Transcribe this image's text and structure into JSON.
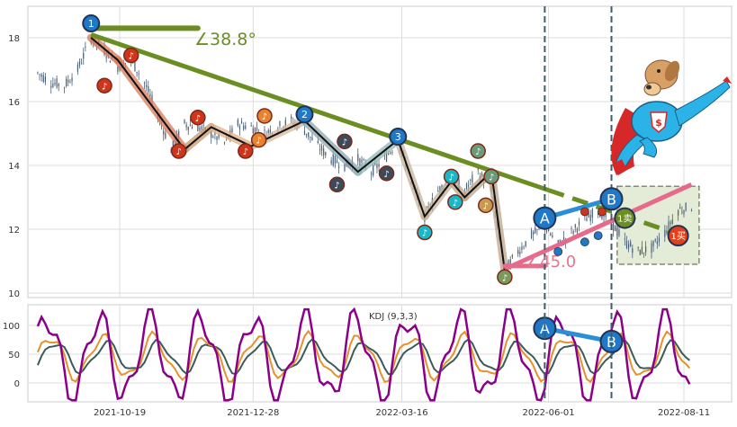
{
  "chart_data": [
    {
      "panel": "price",
      "type": "candlestick",
      "x_labels": [
        "2021-10-19",
        "2021-12-28",
        "2022-03-16",
        "2022-06-01",
        "2022-08-11"
      ],
      "y_ticks": [
        "10",
        "12",
        "14",
        "16",
        "18"
      ],
      "ylim": [
        9.8,
        18.9
      ],
      "grid": true,
      "price_series": [
        [
          "2021-09-06",
          16.9
        ],
        [
          "2021-09-13",
          16.6
        ],
        [
          "2021-09-20",
          16.5
        ],
        [
          "2021-09-27",
          17.0
        ],
        [
          "2021-10-04",
          18.0
        ],
        [
          "2021-10-11",
          17.6
        ],
        [
          "2021-10-18",
          17.1
        ],
        [
          "2021-10-25",
          17.3
        ],
        [
          "2021-11-01",
          16.6
        ],
        [
          "2021-11-08",
          15.6
        ],
        [
          "2021-11-15",
          14.5
        ],
        [
          "2021-11-22",
          15.3
        ],
        [
          "2021-11-29",
          15.2
        ],
        [
          "2021-12-06",
          15.0
        ],
        [
          "2021-12-13",
          14.7
        ],
        [
          "2021-12-20",
          15.3
        ],
        [
          "2021-12-27",
          15.2
        ],
        [
          "2022-01-03",
          15.0
        ],
        [
          "2022-01-10",
          15.2
        ],
        [
          "2022-01-17",
          15.4
        ],
        [
          "2022-01-24",
          15.1
        ],
        [
          "2022-01-31",
          14.6
        ],
        [
          "2022-02-07",
          14.2
        ],
        [
          "2022-02-14",
          14.0
        ],
        [
          "2022-02-21",
          14.2
        ],
        [
          "2022-02-28",
          13.8
        ],
        [
          "2022-03-07",
          14.2
        ],
        [
          "2022-03-14",
          14.8
        ],
        [
          "2022-03-21",
          13.5
        ],
        [
          "2022-03-28",
          12.4
        ],
        [
          "2022-04-04",
          13.2
        ],
        [
          "2022-04-11",
          13.6
        ],
        [
          "2022-04-18",
          13.2
        ],
        [
          "2022-04-25",
          13.8
        ],
        [
          "2022-05-02",
          13.2
        ],
        [
          "2022-05-09",
          10.7
        ],
        [
          "2022-05-16",
          11.3
        ],
        [
          "2022-05-23",
          11.8
        ],
        [
          "2022-05-30",
          12.1
        ],
        [
          "2022-06-06",
          11.5
        ],
        [
          "2022-06-13",
          11.9
        ],
        [
          "2022-06-20",
          12.3
        ],
        [
          "2022-06-27",
          12.6
        ],
        [
          "2022-07-04",
          12.2
        ],
        [
          "2022-07-11",
          11.6
        ],
        [
          "2022-07-18",
          11.3
        ],
        [
          "2022-07-25",
          11.4
        ],
        [
          "2022-08-01",
          11.9
        ],
        [
          "2022-08-08",
          12.6
        ],
        [
          "2022-08-15",
          12.7
        ]
      ],
      "zigzag_path": [
        [
          "2021-10-04",
          18.0
        ],
        [
          "2021-10-18",
          17.3
        ],
        [
          "2021-11-22",
          14.5
        ],
        [
          "2021-12-06",
          15.2
        ],
        [
          "2021-12-27",
          14.6
        ],
        [
          "2022-01-24",
          15.4
        ],
        [
          "2022-02-21",
          13.8
        ],
        [
          "2022-03-14",
          14.8
        ],
        [
          "2022-03-28",
          12.4
        ],
        [
          "2022-04-11",
          13.5
        ],
        [
          "2022-04-18",
          13.0
        ],
        [
          "2022-05-02",
          13.8
        ],
        [
          "2022-05-09",
          10.7
        ]
      ],
      "trendline": {
        "from": [
          "2021-10-04",
          18.1
        ],
        "to": [
          "2022-08-15",
          11.7
        ],
        "dashed_from": "2022-06-01"
      },
      "annotations": [
        {
          "text": "∠38.8°",
          "color": "#6b8e23"
        },
        {
          "text": "∠45.0",
          "color": "#e8738f"
        }
      ],
      "markers": [
        {
          "label": "1",
          "x": "2021-10-04",
          "y": 18.45,
          "color": "#1f78c8"
        },
        {
          "label": "2",
          "x": "2022-01-24",
          "y": 15.6,
          "color": "#1f78c8"
        },
        {
          "label": "3",
          "x": "2022-03-14",
          "y": 14.9,
          "color": "#1f78c8"
        },
        {
          "label": "A",
          "x": "2022-05-30",
          "y": 12.35,
          "color": "#1f78c8"
        },
        {
          "label": "B",
          "x": "2022-07-04",
          "y": 12.95,
          "color": "#1f78c8"
        },
        {
          "label": "1卖",
          "x": "2022-07-11",
          "y": 12.35,
          "color": "#6b8e23"
        },
        {
          "label": "1买",
          "x": "2022-08-08",
          "y": 11.8,
          "color": "#e0401a"
        }
      ],
      "music_note": "♪",
      "highlight_box": {
        "x0": "2022-07-07",
        "x1": "2022-08-19",
        "y0": 10.9,
        "y1": 13.35
      },
      "vlines": [
        "2022-05-30",
        "2022-07-04"
      ]
    },
    {
      "panel": "indicator",
      "type": "line",
      "title": "KDJ (9,3,3)",
      "y_ticks": [
        "0",
        "50",
        "100"
      ],
      "ylim": [
        -40,
        140
      ],
      "markers": [
        {
          "label": "A",
          "x": "2022-05-30",
          "y": 95,
          "color": "#1f78c8"
        },
        {
          "label": "B",
          "x": "2022-07-04",
          "y": 72,
          "color": "#1f78c8"
        }
      ]
    }
  ],
  "colors": {
    "trend": "#6b8e23",
    "zigzag": "#111111",
    "k": "#e6912e",
    "d": "#3d5a5a",
    "j": "#8b008b",
    "marker": "#1f78c8",
    "vline": "#3d5f6b"
  }
}
